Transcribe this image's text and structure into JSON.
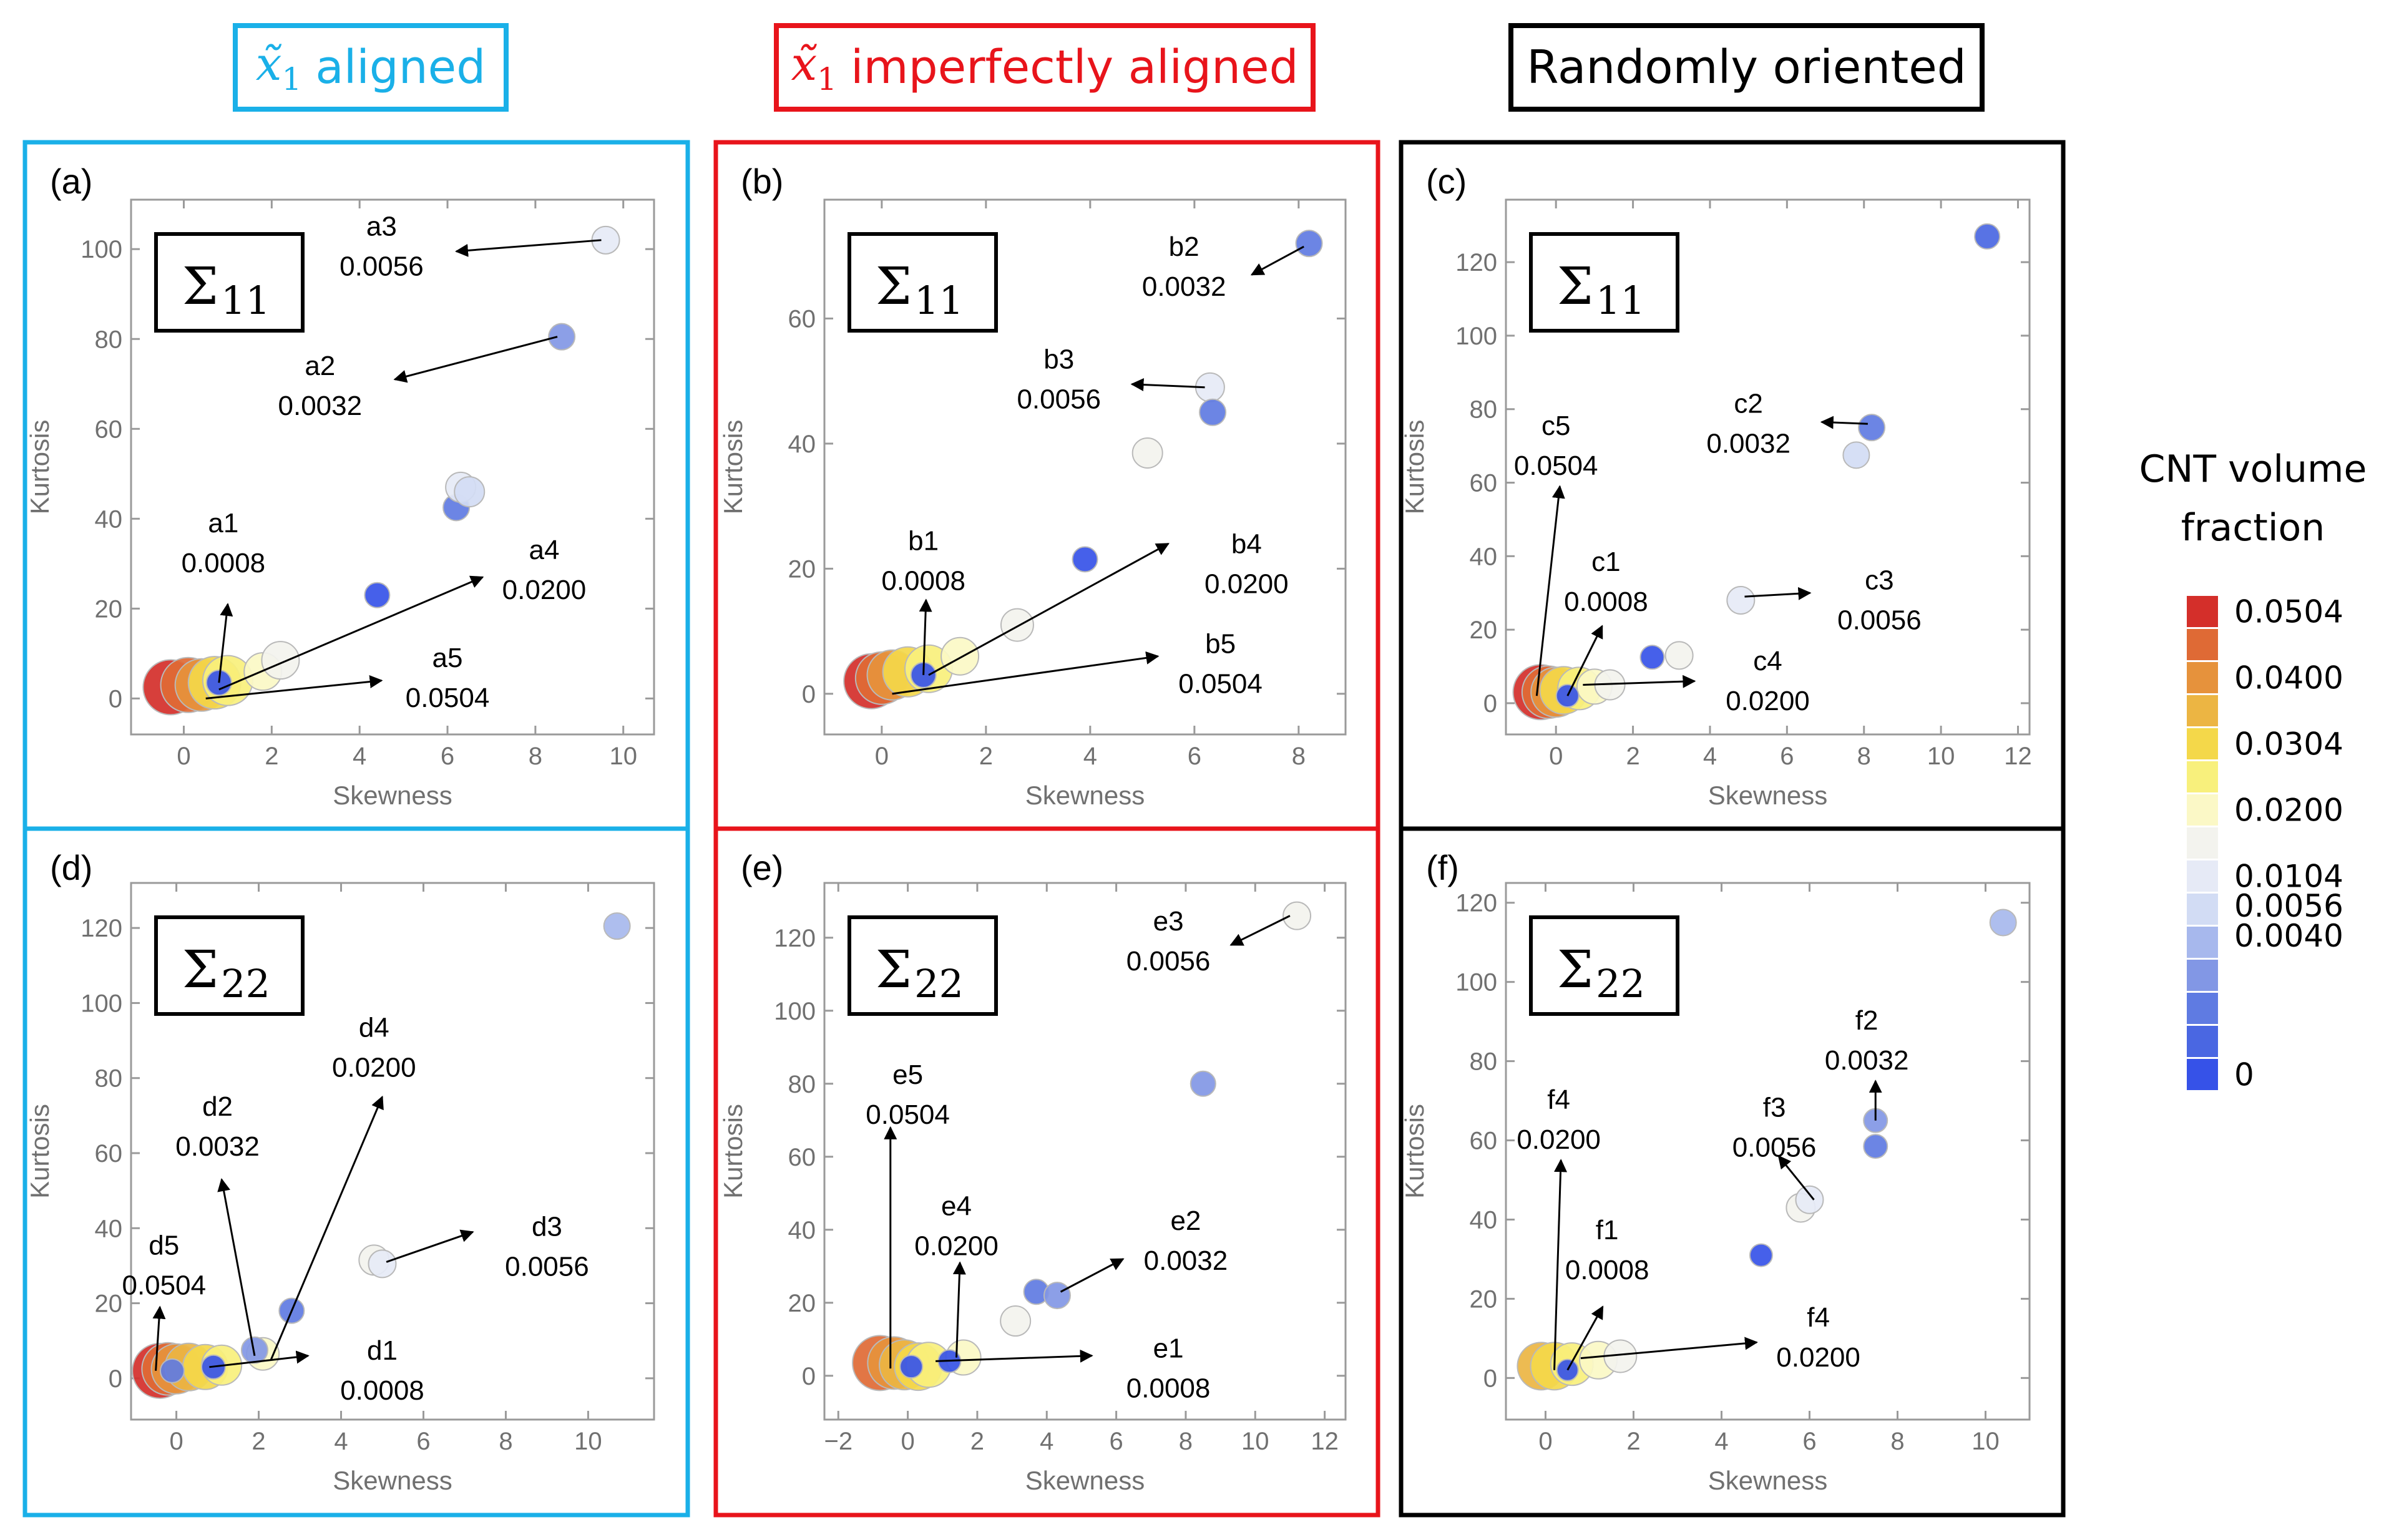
{
  "column_titles": [
    {
      "symbol": "x̃",
      "sub": "1",
      "text": "aligned",
      "color": "#1ab0e8"
    },
    {
      "symbol": "x̃",
      "sub": "1",
      "text": "imperfectly aligned",
      "color": "#e8141b"
    },
    {
      "symbol": "",
      "sub": "",
      "text": "Randomly oriented",
      "color": "#000000"
    }
  ],
  "legend": {
    "title_line1": "CNT volume",
    "title_line2": "fraction",
    "swatches": [
      "#d42f2a",
      "#df6a35",
      "#e6923c",
      "#ecb543",
      "#f4d84a",
      "#f8f07c",
      "#fbf8c6",
      "#f3f3ee",
      "#e6eaf6",
      "#d2dcf4",
      "#a7b8ed",
      "#8297e5",
      "#5f7be2",
      "#4a67e2",
      "#3652e8"
    ],
    "labels": [
      {
        "text": "0.0504",
        "slot": 0
      },
      {
        "text": "0.0400",
        "slot": 2
      },
      {
        "text": "0.0304",
        "slot": 4
      },
      {
        "text": "0.0200",
        "slot": 6
      },
      {
        "text": "0.0104",
        "slot": 8
      },
      {
        "text": "0.0056",
        "slot": 8.9
      },
      {
        "text": "0.0040",
        "slot": 9.8
      },
      {
        "text": "0",
        "slot": 14
      }
    ]
  },
  "chart_data": [
    {
      "panel": "(a)",
      "type": "scatter",
      "sigma": "Σ",
      "sigma_sub": "11",
      "xlabel": "Skewness",
      "ylabel": "Kurtosis",
      "xlim": [
        -1.2,
        10.7
      ],
      "ylim": [
        -8,
        111
      ],
      "xticks": [
        0,
        2,
        4,
        6,
        8,
        10
      ],
      "yticks": [
        0,
        20,
        40,
        60,
        80,
        100
      ],
      "points": [
        {
          "x": -0.3,
          "y": 2.5,
          "color": "#d42f2a",
          "r": 44
        },
        {
          "x": 0.1,
          "y": 3,
          "color": "#df6a35",
          "r": 44
        },
        {
          "x": 0.4,
          "y": 3,
          "color": "#e6923c",
          "r": 42
        },
        {
          "x": 0.7,
          "y": 3.5,
          "color": "#f4d84a",
          "r": 42
        },
        {
          "x": 1.0,
          "y": 4,
          "color": "#f8f07c",
          "r": 40
        },
        {
          "x": 1.8,
          "y": 6,
          "color": "#fbf8c6",
          "r": 30
        },
        {
          "x": 2.2,
          "y": 8.5,
          "color": "#f3f3ee",
          "r": 30
        },
        {
          "x": 0.8,
          "y": 3.5,
          "color": "#3652e8",
          "r": 20
        },
        {
          "x": 4.4,
          "y": 23,
          "color": "#3652e8",
          "r": 20
        },
        {
          "x": 6.2,
          "y": 42.5,
          "color": "#5f7be2",
          "r": 21
        },
        {
          "x": 6.3,
          "y": 47,
          "color": "#e6eaf6",
          "r": 24
        },
        {
          "x": 6.5,
          "y": 46,
          "color": "#d2dcf4",
          "r": 24
        },
        {
          "x": 8.6,
          "y": 80.5,
          "color": "#8297e5",
          "r": 21
        },
        {
          "x": 9.6,
          "y": 102,
          "color": "#e6eaf6",
          "r": 22
        }
      ],
      "annotations": [
        {
          "name": "a3",
          "value": "0.0056",
          "tx": 4.5,
          "ty": 103,
          "ax1": 9.5,
          "ay1": 102,
          "ax2": 6.2,
          "ay2": 99.5
        },
        {
          "name": "a2",
          "value": "0.0032",
          "tx": 3.1,
          "ty": 72,
          "ax1": 8.5,
          "ay1": 80.5,
          "ax2": 4.8,
          "ay2": 71
        },
        {
          "name": "a1",
          "value": "0.0008",
          "tx": 0.9,
          "ty": 37,
          "ax1": 0.8,
          "ay1": 3.5,
          "ax2": 1.0,
          "ay2": 21
        },
        {
          "name": "a4",
          "value": "0.0200",
          "tx": 8.2,
          "ty": 31,
          "ax1": 0.8,
          "ay1": 2,
          "ax2": 6.8,
          "ay2": 27
        },
        {
          "name": "a5",
          "value": "0.0504",
          "tx": 6.0,
          "ty": 7,
          "ax1": 0.5,
          "ay1": 0,
          "ax2": 4.5,
          "ay2": 4
        }
      ]
    },
    {
      "panel": "(b)",
      "type": "scatter",
      "sigma": "Σ",
      "sigma_sub": "11",
      "xlabel": "Skewness",
      "ylabel": "Kurtosis",
      "xlim": [
        -1.1,
        8.9
      ],
      "ylim": [
        -6.5,
        79
      ],
      "xticks": [
        0,
        2,
        4,
        6,
        8
      ],
      "yticks": [
        0,
        20,
        40,
        60
      ],
      "points": [
        {
          "x": -0.2,
          "y": 2,
          "color": "#d42f2a",
          "r": 44
        },
        {
          "x": 0.0,
          "y": 2.5,
          "color": "#df6a35",
          "r": 42
        },
        {
          "x": 0.2,
          "y": 3,
          "color": "#e6923c",
          "r": 40
        },
        {
          "x": 0.5,
          "y": 3.5,
          "color": "#f4d84a",
          "r": 40
        },
        {
          "x": 0.9,
          "y": 4,
          "color": "#f8f07c",
          "r": 38
        },
        {
          "x": 1.5,
          "y": 6,
          "color": "#fbf8c6",
          "r": 30
        },
        {
          "x": 2.6,
          "y": 11,
          "color": "#f3f3ee",
          "r": 26
        },
        {
          "x": 0.8,
          "y": 3,
          "color": "#3652e8",
          "r": 20
        },
        {
          "x": 3.9,
          "y": 21.5,
          "color": "#3652e8",
          "r": 20
        },
        {
          "x": 5.1,
          "y": 38.5,
          "color": "#f3f3ee",
          "r": 24
        },
        {
          "x": 6.3,
          "y": 49,
          "color": "#e6eaf6",
          "r": 23
        },
        {
          "x": 6.35,
          "y": 45,
          "color": "#5f7be2",
          "r": 21
        },
        {
          "x": 8.2,
          "y": 72,
          "color": "#5f7be2",
          "r": 21
        }
      ],
      "annotations": [
        {
          "name": "b2",
          "value": "0.0032",
          "tx": 5.8,
          "ty": 70,
          "ax1": 8.1,
          "ay1": 71.5,
          "ax2": 7.1,
          "ay2": 67
        },
        {
          "name": "b3",
          "value": "0.0056",
          "tx": 3.4,
          "ty": 52,
          "ax1": 6.2,
          "ay1": 49,
          "ax2": 4.8,
          "ay2": 49.5
        },
        {
          "name": "b1",
          "value": "0.0008",
          "tx": 0.8,
          "ty": 23,
          "ax1": 0.8,
          "ay1": 3,
          "ax2": 0.85,
          "ay2": 15
        },
        {
          "name": "b4",
          "value": "0.0200",
          "tx": 7.0,
          "ty": 22.5,
          "ax1": 0.9,
          "ay1": 3,
          "ax2": 5.5,
          "ay2": 24
        },
        {
          "name": "b5",
          "value": "0.0504",
          "tx": 6.5,
          "ty": 6.5,
          "ax1": 0.2,
          "ay1": 0,
          "ax2": 5.3,
          "ay2": 6
        }
      ]
    },
    {
      "panel": "(c)",
      "type": "scatter",
      "sigma": "Σ",
      "sigma_sub": "11",
      "xlabel": "Skewness",
      "ylabel": "Kurtosis",
      "xlim": [
        -1.3,
        12.3
      ],
      "ylim": [
        -8.5,
        137
      ],
      "xticks": [
        0,
        2,
        4,
        6,
        8,
        10,
        12
      ],
      "yticks": [
        0,
        20,
        40,
        60,
        80,
        100,
        120
      ],
      "points": [
        {
          "x": -0.4,
          "y": 3,
          "color": "#d42f2a",
          "r": 44
        },
        {
          "x": -0.2,
          "y": 3,
          "color": "#df6a35",
          "r": 42
        },
        {
          "x": 0.0,
          "y": 3,
          "color": "#e6923c",
          "r": 40
        },
        {
          "x": 0.2,
          "y": 3.5,
          "color": "#f4d84a",
          "r": 38
        },
        {
          "x": 0.6,
          "y": 4,
          "color": "#f8f07c",
          "r": 34
        },
        {
          "x": 1.0,
          "y": 4.5,
          "color": "#fbf8c6",
          "r": 28
        },
        {
          "x": 1.4,
          "y": 5,
          "color": "#f3f3ee",
          "r": 24
        },
        {
          "x": 0.3,
          "y": 2,
          "color": "#3652e8",
          "r": 18
        },
        {
          "x": 2.5,
          "y": 12.5,
          "color": "#3652e8",
          "r": 19
        },
        {
          "x": 3.2,
          "y": 13,
          "color": "#f3f3ee",
          "r": 22
        },
        {
          "x": 4.8,
          "y": 28,
          "color": "#e6eaf6",
          "r": 22
        },
        {
          "x": 7.8,
          "y": 67.5,
          "color": "#d2dcf4",
          "r": 21
        },
        {
          "x": 8.2,
          "y": 75,
          "color": "#5f7be2",
          "r": 21
        },
        {
          "x": 11.2,
          "y": 127,
          "color": "#4a67e2",
          "r": 20
        }
      ],
      "annotations": [
        {
          "name": "c2",
          "value": "0.0032",
          "tx": 5.0,
          "ty": 79,
          "ax1": 8.1,
          "ay1": 76,
          "ax2": 6.9,
          "ay2": 76.5
        },
        {
          "name": "c5",
          "value": "0.0504",
          "tx": 0.0,
          "ty": 73,
          "ax1": -0.5,
          "ay1": 2,
          "ax2": 0.1,
          "ay2": 59
        },
        {
          "name": "c1",
          "value": "0.0008",
          "tx": 1.3,
          "ty": 36,
          "ax1": 0.3,
          "ay1": 2,
          "ax2": 1.2,
          "ay2": 21
        },
        {
          "name": "c3",
          "value": "0.0056",
          "tx": 8.4,
          "ty": 31,
          "ax1": 4.9,
          "ay1": 29,
          "ax2": 6.6,
          "ay2": 30
        },
        {
          "name": "c4",
          "value": "0.0200",
          "tx": 5.5,
          "ty": 9,
          "ax1": 0.7,
          "ay1": 5,
          "ax2": 3.6,
          "ay2": 6
        }
      ]
    },
    {
      "panel": "(d)",
      "type": "scatter",
      "sigma": "Σ",
      "sigma_sub": "22",
      "xlabel": "Skewness",
      "ylabel": "Kurtosis",
      "xlim": [
        -1.1,
        11.6
      ],
      "ylim": [
        -11,
        132
      ],
      "xticks": [
        0,
        2,
        4,
        6,
        8,
        10
      ],
      "yticks": [
        0,
        20,
        40,
        60,
        80,
        100,
        120
      ],
      "points": [
        {
          "x": -0.4,
          "y": 2,
          "color": "#d42f2a",
          "r": 44
        },
        {
          "x": -0.2,
          "y": 2.5,
          "color": "#df6a35",
          "r": 42
        },
        {
          "x": 0.0,
          "y": 2.5,
          "color": "#e6923c",
          "r": 40
        },
        {
          "x": 0.3,
          "y": 3,
          "color": "#ecb543",
          "r": 38
        },
        {
          "x": 0.7,
          "y": 3,
          "color": "#f4d84a",
          "r": 36
        },
        {
          "x": 1.1,
          "y": 3.5,
          "color": "#f8f07c",
          "r": 32
        },
        {
          "x": 2.1,
          "y": 6.5,
          "color": "#fbf8c6",
          "r": 26
        },
        {
          "x": -0.1,
          "y": 2,
          "color": "#5f7be2",
          "r": 19
        },
        {
          "x": 0.9,
          "y": 3,
          "color": "#3652e8",
          "r": 19
        },
        {
          "x": 1.9,
          "y": 7.5,
          "color": "#8297e5",
          "r": 21
        },
        {
          "x": 2.8,
          "y": 18,
          "color": "#5f7be2",
          "r": 20
        },
        {
          "x": 4.8,
          "y": 31.5,
          "color": "#f3f3ee",
          "r": 24
        },
        {
          "x": 5.0,
          "y": 30.5,
          "color": "#e6eaf6",
          "r": 22
        },
        {
          "x": 10.7,
          "y": 120.5,
          "color": "#a7b8ed",
          "r": 21
        }
      ],
      "annotations": [
        {
          "name": "d4",
          "value": "0.0200",
          "tx": 4.8,
          "ty": 91,
          "ax1": 2.3,
          "ay1": 5,
          "ax2": 5.0,
          "ay2": 75
        },
        {
          "name": "d2",
          "value": "0.0032",
          "tx": 1.0,
          "ty": 70,
          "ax1": 1.9,
          "ay1": 6,
          "ax2": 1.1,
          "ay2": 53
        },
        {
          "name": "d3",
          "value": "0.0056",
          "tx": 9.0,
          "ty": 38,
          "ax1": 5.1,
          "ay1": 31,
          "ax2": 7.2,
          "ay2": 39
        },
        {
          "name": "d5",
          "value": "0.0504",
          "tx": -0.3,
          "ty": 33,
          "ax1": -0.5,
          "ay1": 2,
          "ax2": -0.4,
          "ay2": 19
        },
        {
          "name": "d1",
          "value": "0.0008",
          "tx": 5.0,
          "ty": 5,
          "ax1": 0.8,
          "ay1": 3,
          "ax2": 3.2,
          "ay2": 6
        }
      ]
    },
    {
      "panel": "(e)",
      "type": "scatter",
      "sigma": "Σ",
      "sigma_sub": "22",
      "xlabel": "Skewness",
      "ylabel": "Kurtosis",
      "xlim": [
        -2.4,
        12.6
      ],
      "ylim": [
        -12,
        135
      ],
      "xticks": [
        -2,
        0,
        2,
        4,
        6,
        8,
        10,
        12
      ],
      "yticks": [
        0,
        20,
        40,
        60,
        80,
        100,
        120
      ],
      "points": [
        {
          "x": -0.8,
          "y": 3.5,
          "color": "#df6a35",
          "r": 44
        },
        {
          "x": -0.4,
          "y": 3.5,
          "color": "#e6923c",
          "r": 42
        },
        {
          "x": -0.1,
          "y": 3,
          "color": "#ecb543",
          "r": 40
        },
        {
          "x": 0.3,
          "y": 2.5,
          "color": "#f4d84a",
          "r": 38
        },
        {
          "x": 0.6,
          "y": 3,
          "color": "#f8f07c",
          "r": 36
        },
        {
          "x": 1.6,
          "y": 5,
          "color": "#fbf8c6",
          "r": 28
        },
        {
          "x": 3.1,
          "y": 15,
          "color": "#f3f3ee",
          "r": 24
        },
        {
          "x": 0.1,
          "y": 2.5,
          "color": "#3652e8",
          "r": 18
        },
        {
          "x": 1.2,
          "y": 4,
          "color": "#3652e8",
          "r": 18
        },
        {
          "x": 3.7,
          "y": 23,
          "color": "#5f7be2",
          "r": 20
        },
        {
          "x": 4.3,
          "y": 22,
          "color": "#8297e5",
          "r": 21
        },
        {
          "x": 8.5,
          "y": 80,
          "color": "#8297e5",
          "r": 20
        },
        {
          "x": 11.2,
          "y": 126,
          "color": "#f3f3ee",
          "r": 22
        }
      ],
      "annotations": [
        {
          "name": "e3",
          "value": "0.0056",
          "tx": 7.5,
          "ty": 122,
          "ax1": 11.0,
          "ay1": 126,
          "ax2": 9.3,
          "ay2": 118
        },
        {
          "name": "e5",
          "value": "0.0504",
          "tx": 0.0,
          "ty": 80,
          "ax1": -0.5,
          "ay1": 2,
          "ax2": -0.5,
          "ay2": 68
        },
        {
          "name": "e4",
          "value": "0.0200",
          "tx": 1.4,
          "ty": 44,
          "ax1": 1.4,
          "ay1": 5,
          "ax2": 1.5,
          "ay2": 31
        },
        {
          "name": "e2",
          "value": "0.0032",
          "tx": 8.0,
          "ty": 40,
          "ax1": 4.4,
          "ay1": 23,
          "ax2": 6.2,
          "ay2": 32
        },
        {
          "name": "e1",
          "value": "0.0008",
          "tx": 7.5,
          "ty": 5,
          "ax1": 0.8,
          "ay1": 4,
          "ax2": 5.3,
          "ay2": 5.5
        }
      ]
    },
    {
      "panel": "(f)",
      "type": "scatter",
      "sigma": "Σ",
      "sigma_sub": "22",
      "xlabel": "Skewness",
      "ylabel": "Kurtosis",
      "xlim": [
        -0.9,
        11.0
      ],
      "ylim": [
        -10.5,
        125
      ],
      "xticks": [
        0,
        2,
        4,
        6,
        8,
        10
      ],
      "yticks": [
        0,
        20,
        40,
        60,
        80,
        100,
        120
      ],
      "points": [
        {
          "x": -0.1,
          "y": 3,
          "color": "#ecb543",
          "r": 38
        },
        {
          "x": 0.2,
          "y": 3,
          "color": "#f4d84a",
          "r": 38
        },
        {
          "x": 0.6,
          "y": 3.5,
          "color": "#f8f07c",
          "r": 34
        },
        {
          "x": 1.2,
          "y": 4.5,
          "color": "#fbf8c6",
          "r": 30
        },
        {
          "x": 1.7,
          "y": 5.5,
          "color": "#f3f3ee",
          "r": 26
        },
        {
          "x": 0.5,
          "y": 2,
          "color": "#3652e8",
          "r": 17
        },
        {
          "x": 4.9,
          "y": 31,
          "color": "#3652e8",
          "r": 18
        },
        {
          "x": 5.8,
          "y": 43,
          "color": "#f3f3ee",
          "r": 23
        },
        {
          "x": 6.0,
          "y": 45,
          "color": "#e6eaf6",
          "r": 22
        },
        {
          "x": 7.5,
          "y": 58.5,
          "color": "#5f7be2",
          "r": 19
        },
        {
          "x": 7.5,
          "y": 65,
          "color": "#8297e5",
          "r": 19
        },
        {
          "x": 10.4,
          "y": 115,
          "color": "#a7b8ed",
          "r": 21
        }
      ],
      "annotations": [
        {
          "name": "f2",
          "value": "0.0032",
          "tx": 7.3,
          "ty": 88,
          "ax1": 7.5,
          "ay1": 65,
          "ax2": 7.5,
          "ay2": 75
        },
        {
          "name": "f3",
          "value": "0.0056",
          "tx": 5.2,
          "ty": 66,
          "ax1": 6.1,
          "ay1": 45,
          "ax2": 5.3,
          "ay2": 56
        },
        {
          "name": "f4",
          "value": "0.0200",
          "tx": 0.3,
          "ty": 68,
          "ax1": 0.2,
          "ay1": 2,
          "ax2": 0.35,
          "ay2": 55
        },
        {
          "name": "f1",
          "value": "0.0008",
          "tx": 1.4,
          "ty": 35,
          "ax1": 0.5,
          "ay1": 2,
          "ax2": 1.3,
          "ay2": 18
        },
        {
          "name": "f4",
          "value": "0.0200",
          "tx": 6.2,
          "ty": 13,
          "ax1": 0.8,
          "ay1": 5,
          "ax2": 4.8,
          "ay2": 9
        }
      ]
    }
  ]
}
